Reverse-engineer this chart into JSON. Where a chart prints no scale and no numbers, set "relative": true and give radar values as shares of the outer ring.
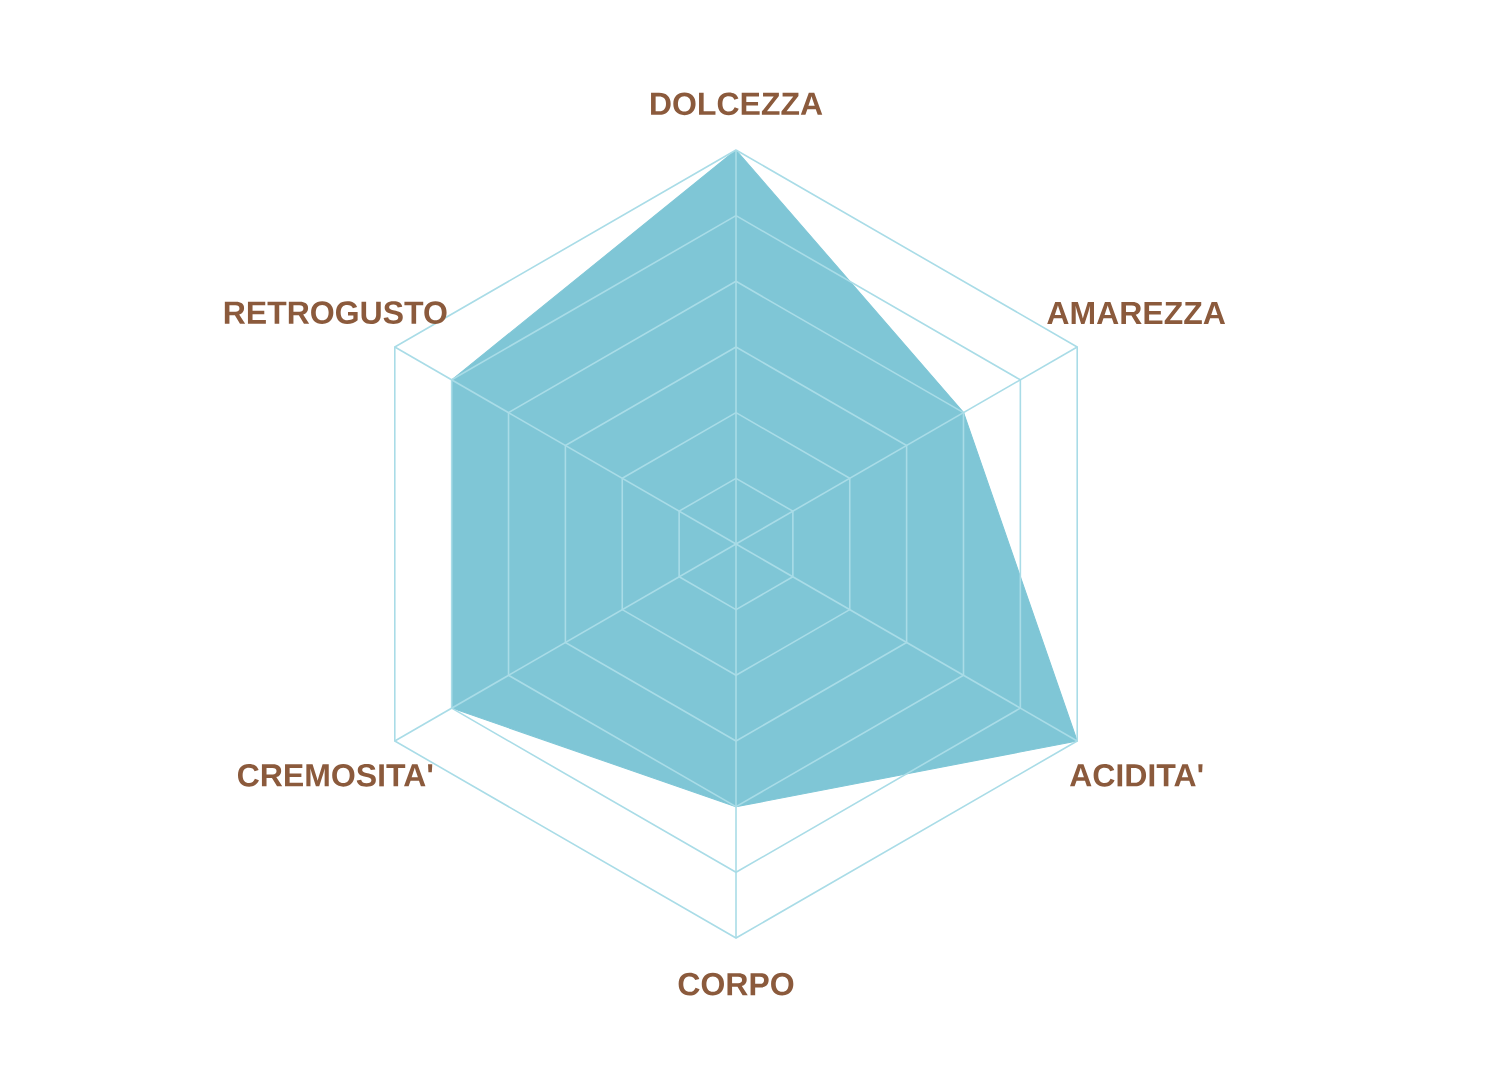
{
  "chart_data": {
    "type": "radar",
    "relative": true,
    "grid": true,
    "categories": [
      "DOLCEZZA",
      "AMAREZZA",
      "ACIDITA'",
      "CORPO",
      "CREMOSITA'",
      "RETROGUSTO"
    ],
    "series": [
      {
        "color": "#7fc6d6",
        "values": [
          1,
          0.667,
          1,
          0.667,
          0.833,
          0.833
        ]
      }
    ]
  }
}
